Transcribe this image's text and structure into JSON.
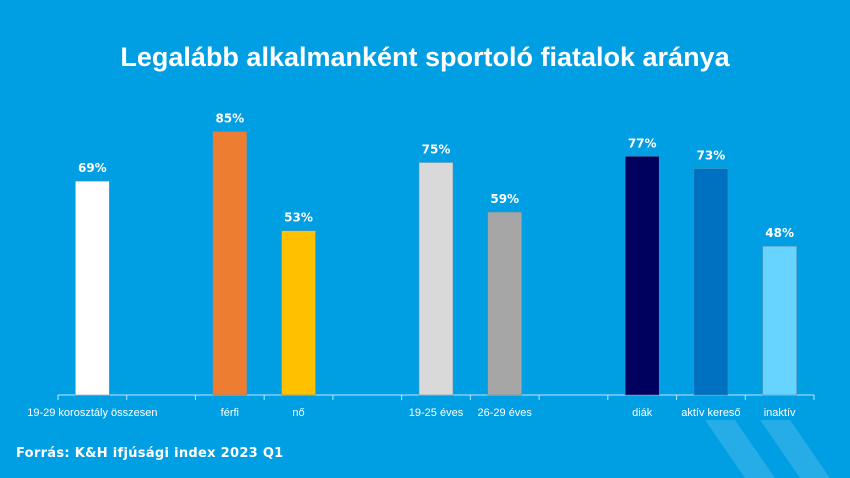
{
  "chart_data": {
    "type": "bar",
    "title": "Legalább alkalmanként sportoló fiatalok aránya",
    "categories": [
      "19-29 korosztály összesen",
      "",
      "férfi",
      "nő",
      "",
      "19-25 éves",
      "26-29 éves",
      "",
      "diák",
      "aktív kereső",
      "inaktív"
    ],
    "values": [
      69,
      null,
      85,
      53,
      null,
      75,
      59,
      null,
      77,
      73,
      48
    ],
    "data_labels": [
      "69%",
      "",
      "85%",
      "53%",
      "",
      "75%",
      "59%",
      "",
      "77%",
      "73%",
      "48%"
    ],
    "colors": [
      "#ffffff",
      null,
      "#ed7d31",
      "#ffc000",
      null,
      "#d9d9d9",
      "#a6a6a6",
      null,
      "#00005e",
      "#0070c0",
      "#66d4ff"
    ],
    "ylim": [
      0,
      100
    ],
    "grid": false,
    "legend": "none",
    "xlabel": "",
    "ylabel": ""
  },
  "source": "Forrás:  K&H ifjúsági index 2023 Q1",
  "background_color": "#009ee3"
}
